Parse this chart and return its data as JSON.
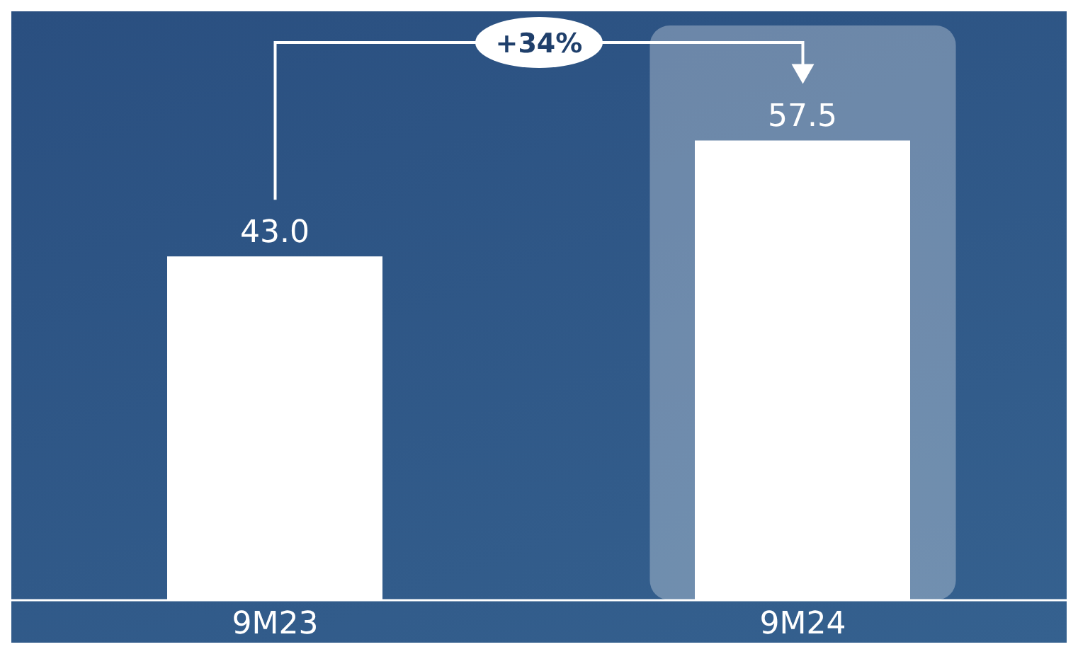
{
  "chart_data": {
    "type": "bar",
    "categories": [
      "9M23",
      "9M24"
    ],
    "values": [
      43.0,
      57.5
    ],
    "color": "#ffffff",
    "value_labels": [
      "43.0",
      "57.5"
    ],
    "annotations": [
      "+34%"
    ],
    "bands": [
      {
        "axis": "x",
        "from": "9M24",
        "to": "9M24",
        "color": "#ffffff"
      }
    ],
    "grid": false,
    "legend": false
  }
}
